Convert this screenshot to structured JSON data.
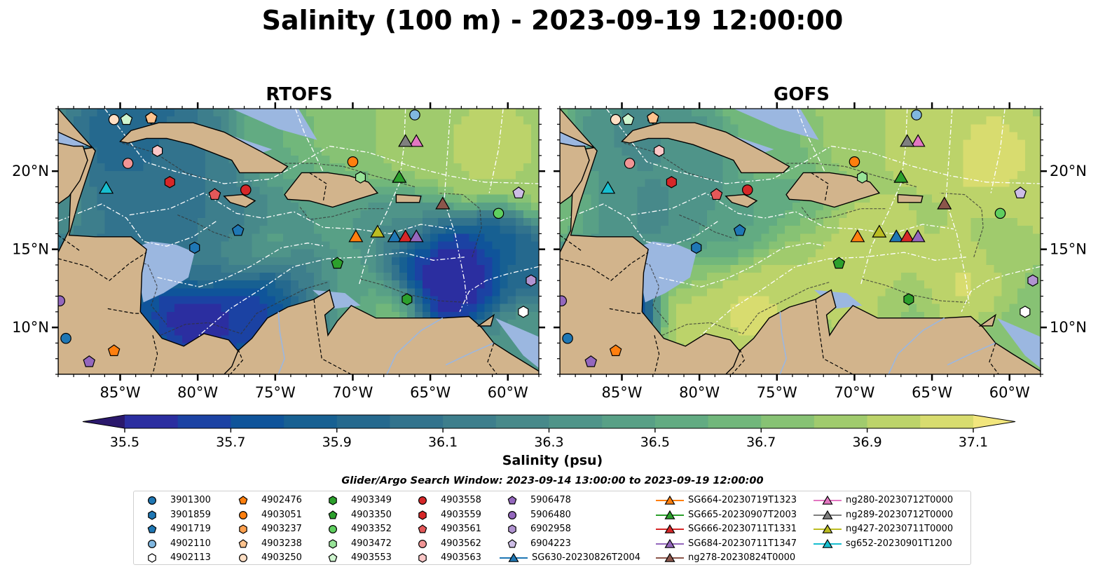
{
  "figure": {
    "title": "Salinity (100 m) - 2023-09-19 12:00:00",
    "search_window": "Glider/Argo Search Window: 2023-09-14 13:00:00 to 2023-09-19 12:00:00"
  },
  "chart_data": [
    {
      "type": "heatmap",
      "title": "RTOFS",
      "variable": "Salinity (psu)",
      "x_ticks": [
        "85°W",
        "80°W",
        "75°W",
        "70°W",
        "65°W",
        "60°W"
      ],
      "y_ticks": [
        "10°N",
        "15°N",
        "20°N"
      ],
      "xlim": [
        -89,
        -58
      ],
      "ylim": [
        7,
        24
      ],
      "grid": false,
      "map_features": [
        "land",
        "coastline",
        "borders",
        "bathymetry contours",
        "EEZ boundaries",
        "rivers"
      ],
      "field_summary": "Eddy-rich field; fresher water (<35.6 psu) in the southwest Caribbean (Colombia/Panama basin) and the eastern Caribbean near 15°N 66°W; saltier water (>36.9 psu) in the Atlantic north of Hispaniola/Puerto Rico and in filaments"
    },
    {
      "type": "heatmap",
      "title": "GOFS",
      "variable": "Salinity (psu)",
      "x_ticks": [
        "85°W",
        "80°W",
        "75°W",
        "70°W",
        "65°W",
        "60°W"
      ],
      "y_ticks": [
        "10°N",
        "15°N",
        "20°N"
      ],
      "xlim": [
        -89,
        -58
      ],
      "ylim": [
        7,
        24
      ],
      "grid": false,
      "map_features": [
        "land",
        "coastline",
        "borders",
        "bathymetry contours",
        "EEZ boundaries",
        "rivers"
      ],
      "field_summary": "Smoother field; high salinity (36.8–37.1 psu) across most of the central and southern Caribbean and the Atlantic; lower salinity (36.2–36.5 psu) in the western Caribbean and Gulf of Honduras; Pacific side <35.5 psu"
    }
  ],
  "colorbar": {
    "label": "Salinity (psu)",
    "ticks": [
      "35.5",
      "35.7",
      "35.9",
      "36.1",
      "36.3",
      "36.5",
      "36.7",
      "36.9",
      "37.1"
    ],
    "range": [
      35.4,
      37.2
    ],
    "extend": "both",
    "colormap": "haline",
    "colors": [
      "#2a186c",
      "#2b2ea0",
      "#1b42a3",
      "#0f549a",
      "#176092",
      "#25698e",
      "#32738d",
      "#3d7e8c",
      "#47898a",
      "#4f9489",
      "#58a086",
      "#62ab82",
      "#71b77b",
      "#87c274",
      "#a0cb6d",
      "#bcd36a",
      "#d8dc6f",
      "#f2e67d"
    ]
  },
  "observations": [
    {
      "id": "3901300",
      "kind": "argo",
      "marker": "circle",
      "color": "#1f77b4",
      "lon": -88.5,
      "lat": 9.3
    },
    {
      "id": "3901859",
      "kind": "argo",
      "marker": "hexagon",
      "color": "#1f77b4",
      "lon": -80.2,
      "lat": 15.1
    },
    {
      "id": "4901719",
      "kind": "argo",
      "marker": "pentagon",
      "color": "#1f77b4",
      "lon": -77.4,
      "lat": 16.2
    },
    {
      "id": "4902110",
      "kind": "argo",
      "marker": "circle",
      "color": "#80b7e0",
      "lon": -66.0,
      "lat": 23.6
    },
    {
      "id": "4902113",
      "kind": "argo",
      "marker": "hexagon",
      "color": "#ffffff",
      "lon": -59.0,
      "lat": 11.0
    },
    {
      "id": "4902476",
      "kind": "argo",
      "marker": "pentagon",
      "color": "#ff7f0e",
      "lon": -85.4,
      "lat": 8.5
    },
    {
      "id": "4903051",
      "kind": "argo",
      "marker": "circle",
      "color": "#ff7f0e",
      "lon": -70.0,
      "lat": 20.6
    },
    {
      "id": "4903237",
      "kind": "argo",
      "marker": "hexagon",
      "color": "#ffa14f",
      "lon": -83.0,
      "lat": 23.4
    },
    {
      "id": "4903238",
      "kind": "argo",
      "marker": "pentagon",
      "color": "#ffc38e",
      "lon": -83.0,
      "lat": 23.4
    },
    {
      "id": "4903250",
      "kind": "argo",
      "marker": "circle",
      "color": "#ffdfc4",
      "lon": -85.4,
      "lat": 23.3
    },
    {
      "id": "4903349",
      "kind": "argo",
      "marker": "hexagon",
      "color": "#2ca02c",
      "lon": -66.5,
      "lat": 11.8
    },
    {
      "id": "4903350",
      "kind": "argo",
      "marker": "pentagon",
      "color": "#2ca02c",
      "lon": -71.0,
      "lat": 14.1
    },
    {
      "id": "4903352",
      "kind": "argo",
      "marker": "circle",
      "color": "#5fcf5f",
      "lon": -60.6,
      "lat": 17.3
    },
    {
      "id": "4903472",
      "kind": "argo",
      "marker": "hexagon",
      "color": "#98e398",
      "lon": -69.5,
      "lat": 19.6
    },
    {
      "id": "4903553",
      "kind": "argo",
      "marker": "pentagon",
      "color": "#cff5cf",
      "lon": -84.6,
      "lat": 23.3
    },
    {
      "id": "4903558",
      "kind": "argo",
      "marker": "circle",
      "color": "#d62728",
      "lon": -76.9,
      "lat": 18.8
    },
    {
      "id": "4903559",
      "kind": "argo",
      "marker": "hexagon",
      "color": "#d62728",
      "lon": -81.8,
      "lat": 19.3
    },
    {
      "id": "4903561",
      "kind": "argo",
      "marker": "pentagon",
      "color": "#e45859",
      "lon": -78.9,
      "lat": 18.5
    },
    {
      "id": "4903562",
      "kind": "argo",
      "marker": "circle",
      "color": "#f19595",
      "lon": -84.5,
      "lat": 20.5
    },
    {
      "id": "4903563",
      "kind": "argo",
      "marker": "hexagon",
      "color": "#fbc7c7",
      "lon": -82.6,
      "lat": 21.3
    },
    {
      "id": "5906478",
      "kind": "argo",
      "marker": "pentagon",
      "color": "#9467bd",
      "lon": -87.0,
      "lat": 7.8
    },
    {
      "id": "5906480",
      "kind": "argo",
      "marker": "circle",
      "color": "#9467bd",
      "lon": -88.9,
      "lat": 11.7
    },
    {
      "id": "6902958",
      "kind": "argo",
      "marker": "hexagon",
      "color": "#b194d1",
      "lon": -58.5,
      "lat": 13.0
    },
    {
      "id": "6904223",
      "kind": "argo",
      "marker": "pentagon",
      "color": "#cdbde6",
      "lon": -59.3,
      "lat": 18.6
    },
    {
      "id": "SG630-20230826T2004",
      "kind": "glider",
      "marker": "triangle",
      "color": "#1f77b4",
      "lon": -67.3,
      "lat": 15.8
    },
    {
      "id": "SG664-20230719T1323",
      "kind": "glider",
      "marker": "triangle",
      "color": "#ff7f0e",
      "lon": -69.8,
      "lat": 15.8
    },
    {
      "id": "SG665-20230907T2003",
      "kind": "glider",
      "marker": "triangle",
      "color": "#2ca02c",
      "lon": -67.0,
      "lat": 19.6
    },
    {
      "id": "SG666-20230711T1331",
      "kind": "glider",
      "marker": "triangle",
      "color": "#d62728",
      "lon": -66.6,
      "lat": 15.8
    },
    {
      "id": "SG684-20230711T1347",
      "kind": "glider",
      "marker": "triangle",
      "color": "#9467bd",
      "lon": -65.9,
      "lat": 15.8
    },
    {
      "id": "ng278-20230824T0000",
      "kind": "glider",
      "marker": "triangle",
      "color": "#8c564b",
      "lon": -64.2,
      "lat": 17.9
    },
    {
      "id": "ng280-20230712T0000",
      "kind": "glider",
      "marker": "triangle",
      "color": "#e377c2",
      "lon": -65.9,
      "lat": 21.9
    },
    {
      "id": "ng289-20230712T0000",
      "kind": "glider",
      "marker": "triangle",
      "color": "#7f7f7f",
      "lon": -66.6,
      "lat": 21.9
    },
    {
      "id": "ng427-20230711T0000",
      "kind": "glider",
      "marker": "triangle",
      "color": "#bcbd22",
      "lon": -68.4,
      "lat": 16.1
    },
    {
      "id": "sg652-20230901T1200",
      "kind": "glider",
      "marker": "triangle",
      "color": "#17becf",
      "lon": -85.9,
      "lat": 18.9
    }
  ],
  "legend": {
    "columns": [
      [
        "3901300",
        "3901859",
        "4901719",
        "4902110",
        "4902113"
      ],
      [
        "4902476",
        "4903051",
        "4903237",
        "4903238",
        "4903250"
      ],
      [
        "4903349",
        "4903350",
        "4903352",
        "4903472",
        "4903553"
      ],
      [
        "4903558",
        "4903559",
        "4903561",
        "4903562",
        "4903563"
      ],
      [
        "5906478",
        "5906480",
        "6902958",
        "6904223",
        "SG630-20230826T2004"
      ],
      [
        "SG664-20230719T1323",
        "SG665-20230907T2003",
        "SG666-20230711T1331",
        "SG684-20230711T1347",
        "ng278-20230824T0000"
      ],
      [
        "ng280-20230712T0000",
        "ng289-20230712T0000",
        "ng427-20230711T0000",
        "sg652-20230901T1200"
      ]
    ]
  },
  "theme": {
    "land": "#d2b48c",
    "shelf": "#9bb7e0",
    "eez_line": "#ffffff",
    "marker_edge": "#000000"
  }
}
